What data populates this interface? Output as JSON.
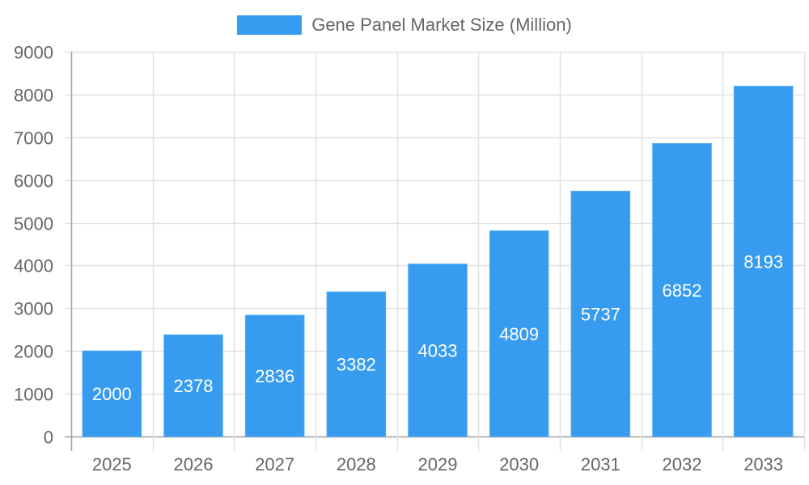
{
  "legend": {
    "label": "Gene Panel Market Size (Million)",
    "color": "#379cf0"
  },
  "colors": {
    "bar": "#379cf0",
    "grid": "#e1e1e1",
    "axis": "#a0a0a0",
    "tick_text": "#666666",
    "bar_label": "#ffffff"
  },
  "chart_data": {
    "type": "bar",
    "title": "",
    "xlabel": "",
    "ylabel": "",
    "categories": [
      "2025",
      "2026",
      "2027",
      "2028",
      "2029",
      "2030",
      "2031",
      "2032",
      "2033"
    ],
    "series": [
      {
        "name": "Gene Panel Market Size (Million)",
        "values": [
          2000,
          2378,
          2836,
          3382,
          4033,
          4809,
          5737,
          6852,
          8193
        ]
      }
    ],
    "ylim": [
      0,
      9000
    ],
    "yticks": [
      0,
      1000,
      2000,
      3000,
      4000,
      5000,
      6000,
      7000,
      8000,
      9000
    ],
    "grid": true,
    "legend_position": "top",
    "data_labels": true
  }
}
